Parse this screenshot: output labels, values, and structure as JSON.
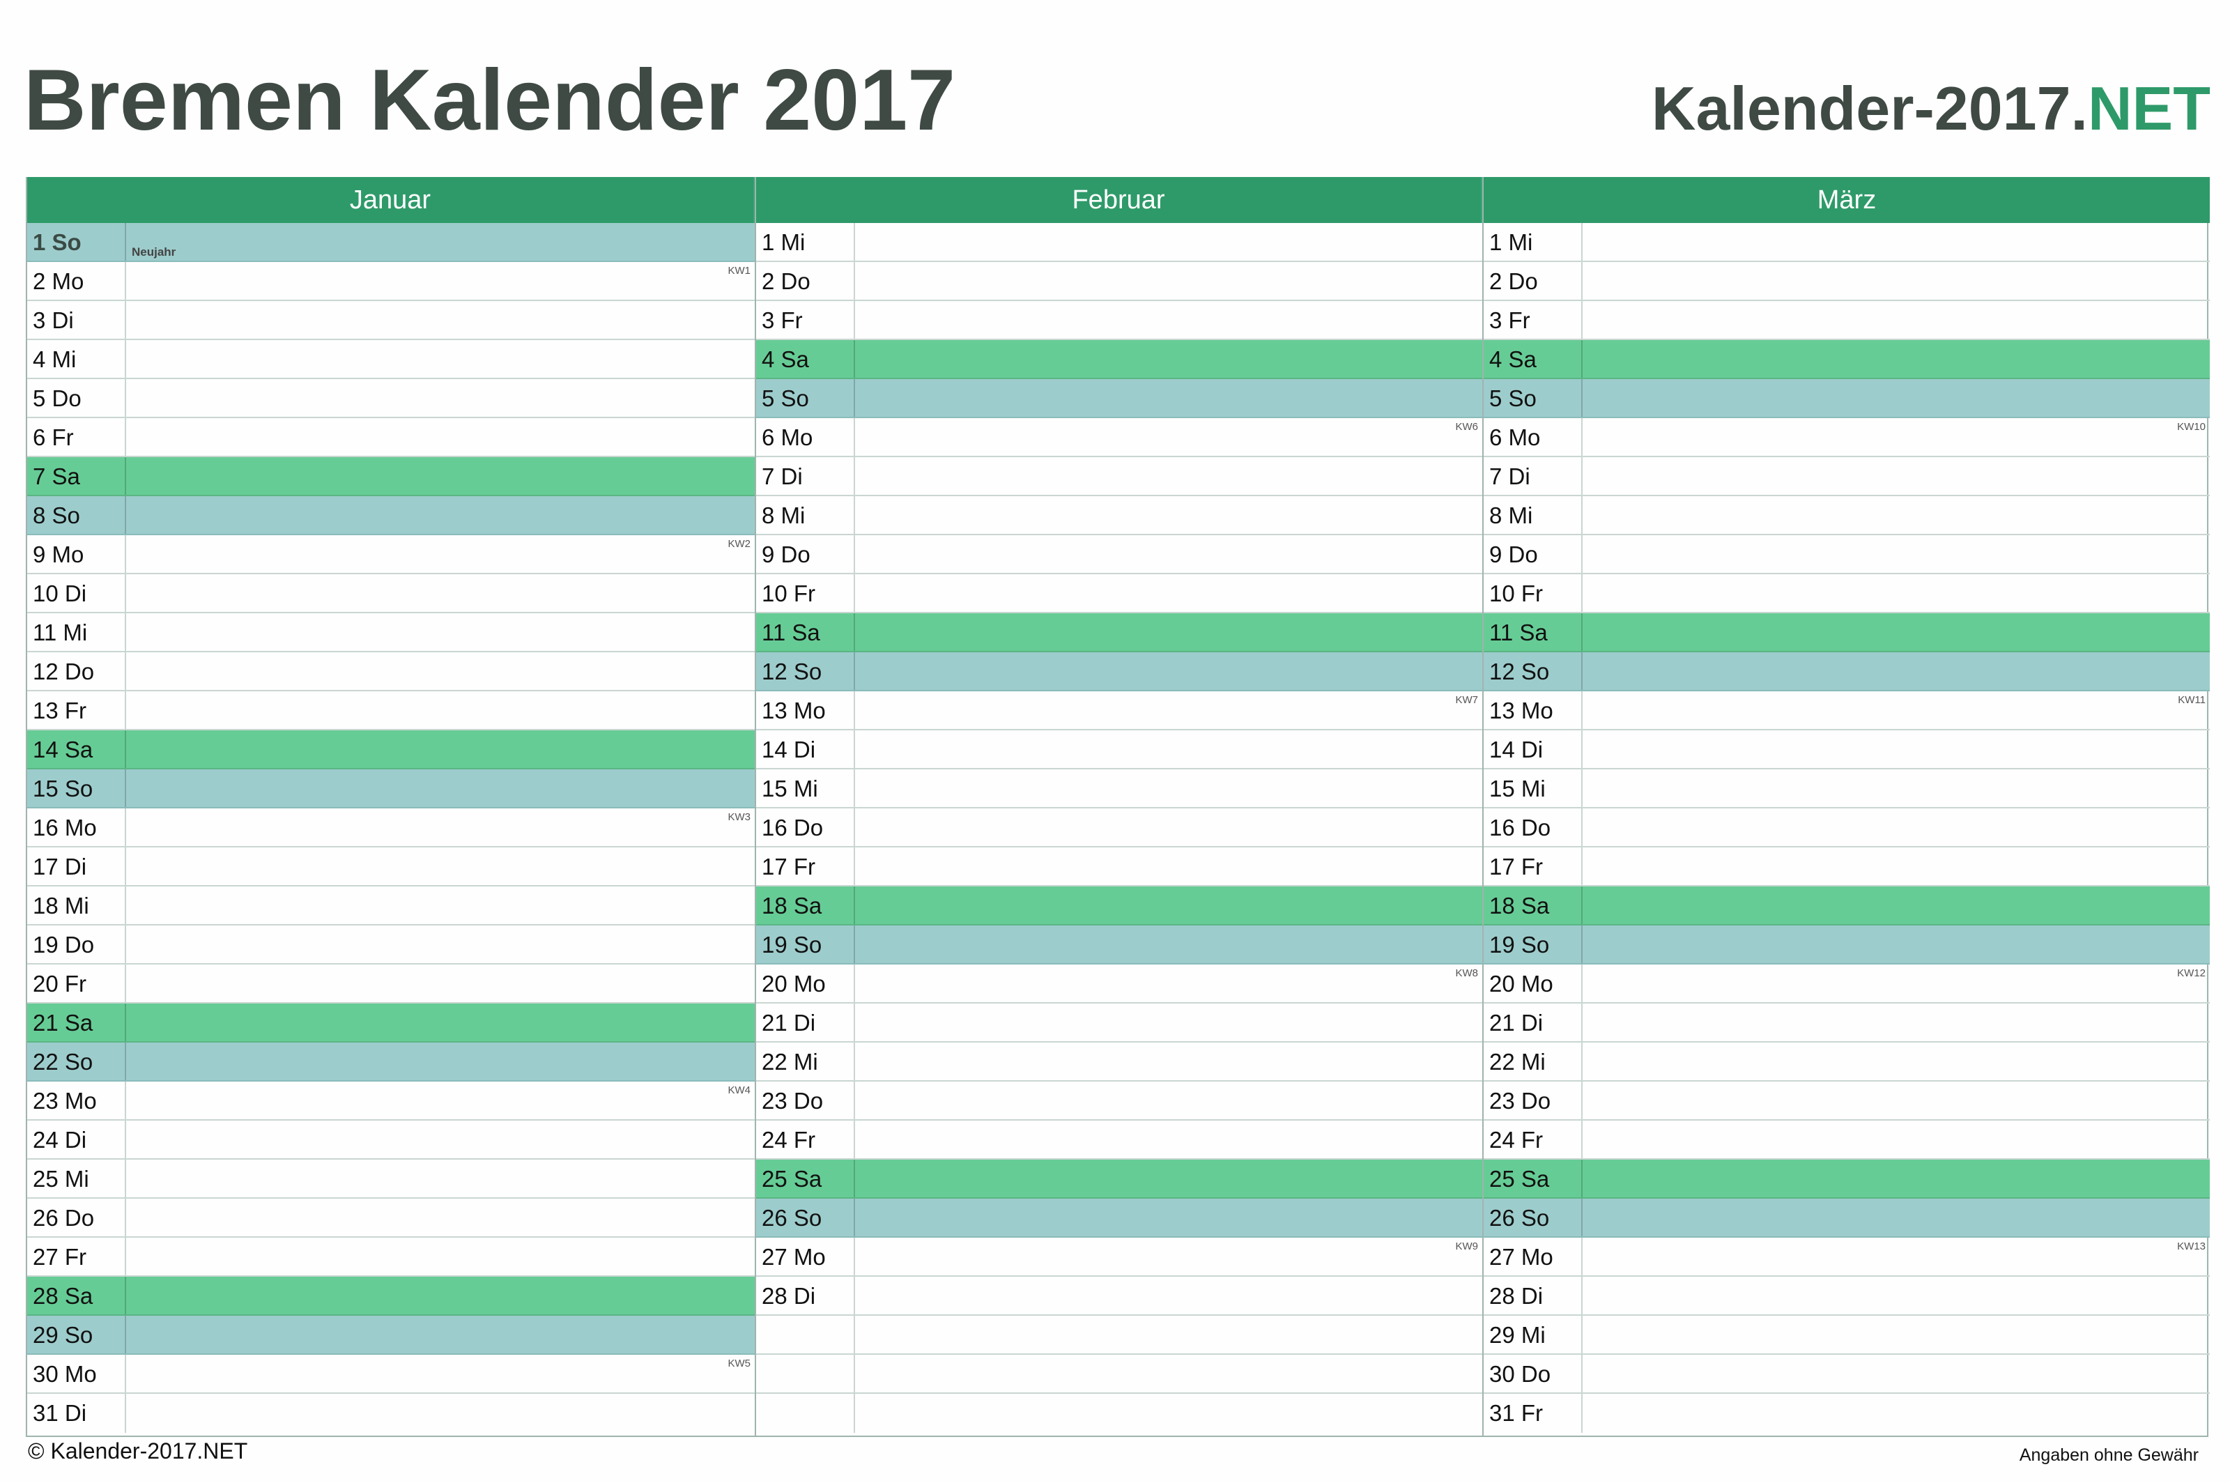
{
  "title": "Bremen Kalender 2017",
  "brand": {
    "name": "Kalender-2017.",
    "tld": "NET"
  },
  "footer": {
    "copyright": "© Kalender-2017.NET",
    "disclaimer": "Angaben ohne Gewähr"
  },
  "colors": {
    "header": "#2e9a69",
    "saturday": "#66cc95",
    "sunday": "#9dcccc",
    "text": "#3f4a44"
  },
  "months": [
    {
      "name": "Januar",
      "days": [
        {
          "label": "1 So",
          "type": "so",
          "holiday": "Neujahr"
        },
        {
          "label": "2 Mo",
          "kw": "KW1"
        },
        {
          "label": "3 Di"
        },
        {
          "label": "4 Mi"
        },
        {
          "label": "5 Do"
        },
        {
          "label": "6 Fr"
        },
        {
          "label": "7 Sa",
          "type": "sa"
        },
        {
          "label": "8 So",
          "type": "so"
        },
        {
          "label": "9 Mo",
          "kw": "KW2"
        },
        {
          "label": "10 Di"
        },
        {
          "label": "11 Mi"
        },
        {
          "label": "12 Do"
        },
        {
          "label": "13 Fr"
        },
        {
          "label": "14 Sa",
          "type": "sa"
        },
        {
          "label": "15 So",
          "type": "so"
        },
        {
          "label": "16 Mo",
          "kw": "KW3"
        },
        {
          "label": "17 Di"
        },
        {
          "label": "18 Mi"
        },
        {
          "label": "19 Do"
        },
        {
          "label": "20 Fr"
        },
        {
          "label": "21 Sa",
          "type": "sa"
        },
        {
          "label": "22 So",
          "type": "so"
        },
        {
          "label": "23 Mo",
          "kw": "KW4"
        },
        {
          "label": "24 Di"
        },
        {
          "label": "25 Mi"
        },
        {
          "label": "26 Do"
        },
        {
          "label": "27 Fr"
        },
        {
          "label": "28 Sa",
          "type": "sa"
        },
        {
          "label": "29 So",
          "type": "so"
        },
        {
          "label": "30 Mo",
          "kw": "KW5"
        },
        {
          "label": "31 Di"
        }
      ]
    },
    {
      "name": "Februar",
      "days": [
        {
          "label": "1 Mi"
        },
        {
          "label": "2 Do"
        },
        {
          "label": "3 Fr"
        },
        {
          "label": "4 Sa",
          "type": "sa"
        },
        {
          "label": "5 So",
          "type": "so"
        },
        {
          "label": "6 Mo",
          "kw": "KW6"
        },
        {
          "label": "7 Di"
        },
        {
          "label": "8 Mi"
        },
        {
          "label": "9 Do"
        },
        {
          "label": "10 Fr"
        },
        {
          "label": "11 Sa",
          "type": "sa"
        },
        {
          "label": "12 So",
          "type": "so"
        },
        {
          "label": "13 Mo",
          "kw": "KW7"
        },
        {
          "label": "14 Di"
        },
        {
          "label": "15 Mi"
        },
        {
          "label": "16 Do"
        },
        {
          "label": "17 Fr"
        },
        {
          "label": "18 Sa",
          "type": "sa"
        },
        {
          "label": "19 So",
          "type": "so"
        },
        {
          "label": "20 Mo",
          "kw": "KW8"
        },
        {
          "label": "21 Di"
        },
        {
          "label": "22 Mi"
        },
        {
          "label": "23 Do"
        },
        {
          "label": "24 Fr"
        },
        {
          "label": "25 Sa",
          "type": "sa"
        },
        {
          "label": "26 So",
          "type": "so"
        },
        {
          "label": "27 Mo",
          "kw": "KW9"
        },
        {
          "label": "28 Di"
        },
        {
          "label": ""
        },
        {
          "label": ""
        },
        {
          "label": ""
        }
      ]
    },
    {
      "name": "März",
      "days": [
        {
          "label": "1 Mi"
        },
        {
          "label": "2 Do"
        },
        {
          "label": "3 Fr"
        },
        {
          "label": "4 Sa",
          "type": "sa"
        },
        {
          "label": "5 So",
          "type": "so"
        },
        {
          "label": "6 Mo",
          "kw": "KW10"
        },
        {
          "label": "7 Di"
        },
        {
          "label": "8 Mi"
        },
        {
          "label": "9 Do"
        },
        {
          "label": "10 Fr"
        },
        {
          "label": "11 Sa",
          "type": "sa"
        },
        {
          "label": "12 So",
          "type": "so"
        },
        {
          "label": "13 Mo",
          "kw": "KW11"
        },
        {
          "label": "14 Di"
        },
        {
          "label": "15 Mi"
        },
        {
          "label": "16 Do"
        },
        {
          "label": "17 Fr"
        },
        {
          "label": "18 Sa",
          "type": "sa"
        },
        {
          "label": "19 So",
          "type": "so"
        },
        {
          "label": "20 Mo",
          "kw": "KW12"
        },
        {
          "label": "21 Di"
        },
        {
          "label": "22 Mi"
        },
        {
          "label": "23 Do"
        },
        {
          "label": "24 Fr"
        },
        {
          "label": "25 Sa",
          "type": "sa"
        },
        {
          "label": "26 So",
          "type": "so"
        },
        {
          "label": "27 Mo",
          "kw": "KW13"
        },
        {
          "label": "28 Di"
        },
        {
          "label": "29 Mi"
        },
        {
          "label": "30 Do"
        },
        {
          "label": "31 Fr"
        }
      ]
    }
  ]
}
